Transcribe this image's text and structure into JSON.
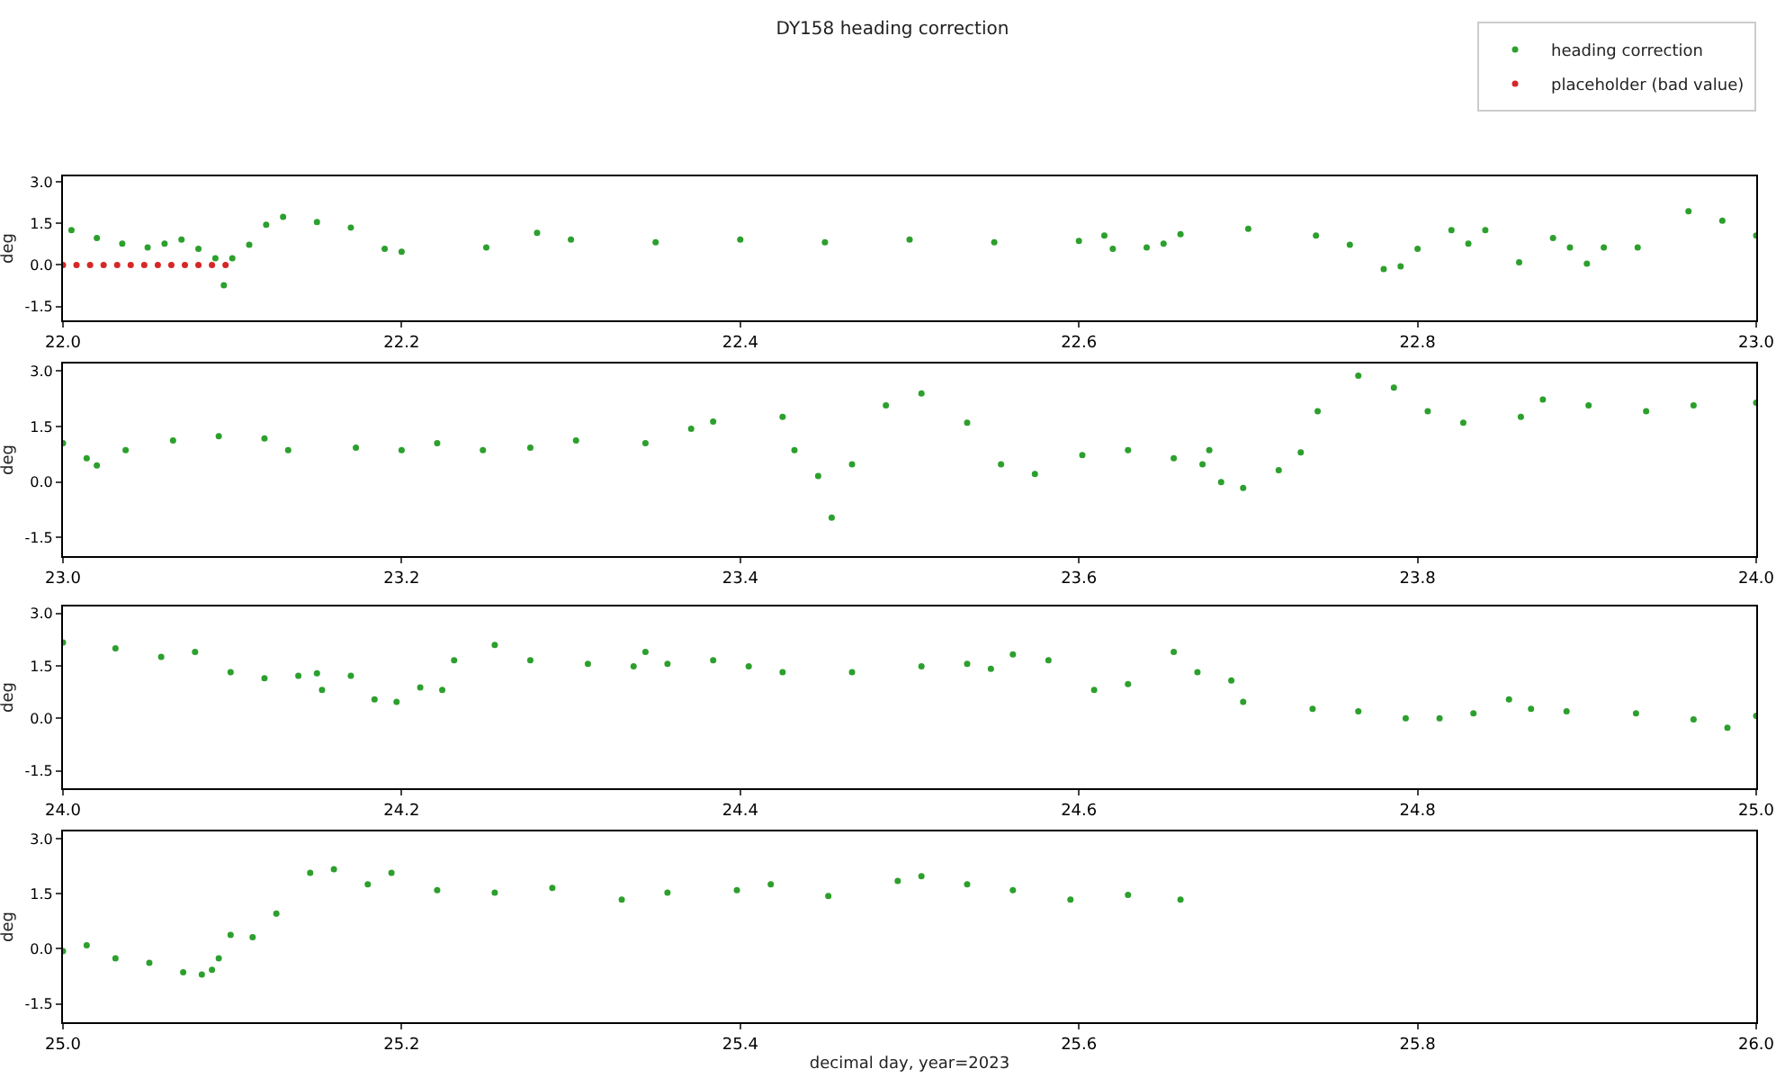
{
  "chart_data": [
    {
      "type": "scatter",
      "title": "DY158 heading correction",
      "ylabel": "deg",
      "legend": "top right",
      "marker": "circle",
      "grid": false,
      "xlim": [
        22.0,
        23.0
      ],
      "xticks": [
        {
          "value": 22.0,
          "label": "22.0"
        },
        {
          "value": 22.2,
          "label": "22.2"
        },
        {
          "value": 22.4,
          "label": "22.4"
        },
        {
          "value": 22.6,
          "label": "22.6"
        },
        {
          "value": 22.8,
          "label": "22.8"
        },
        {
          "value": 23.0,
          "label": "23.0"
        }
      ],
      "ylim": [
        -2.0,
        3.2
      ],
      "yticks": [
        {
          "value": -1.5,
          "label": "-1.5"
        },
        {
          "value": 0,
          "label": "0.0"
        },
        {
          "value": 1.5,
          "label": "1.5"
        },
        {
          "value": 3.0,
          "label": "3.0"
        }
      ],
      "series": [
        {
          "name": "heading correction",
          "color": "#2ca02c",
          "x": [
            22.005,
            22.02,
            22.035,
            22.05,
            22.06,
            22.07,
            22.08,
            22.09,
            22.095,
            22.1,
            22.11,
            22.12,
            22.13,
            22.15,
            22.17,
            22.19,
            22.2,
            22.25,
            22.28,
            22.3,
            22.35,
            22.4,
            22.45,
            22.5,
            22.55,
            22.6,
            22.615,
            22.62,
            22.64,
            22.65,
            22.66,
            22.7,
            22.74,
            22.76,
            22.78,
            22.79,
            22.8,
            22.82,
            22.83,
            22.84,
            22.86,
            22.88,
            22.89,
            22.9,
            22.91,
            22.93,
            22.96,
            22.98,
            23.0
          ],
          "values": [
            1.26,
            0.97,
            0.77,
            0.63,
            0.77,
            0.92,
            0.58,
            0.24,
            -0.73,
            0.24,
            0.73,
            1.45,
            1.74,
            1.55,
            1.35,
            0.58,
            0.48,
            0.63,
            1.16,
            0.92,
            0.82,
            0.92,
            0.82,
            0.92,
            0.82,
            0.87,
            1.06,
            0.58,
            0.63,
            0.77,
            1.11,
            1.31,
            1.06,
            0.73,
            -0.15,
            -0.05,
            0.58,
            1.26,
            0.77,
            1.26,
            0.1,
            0.97,
            0.63,
            0.05,
            0.63,
            0.63,
            1.94,
            1.6,
            1.06
          ]
        },
        {
          "name": "placeholder (bad value)",
          "color": "#d62728",
          "x": [
            22.0,
            22.008,
            22.016,
            22.024,
            22.032,
            22.04,
            22.048,
            22.056,
            22.064,
            22.072,
            22.08,
            22.088,
            22.096
          ],
          "values": [
            0,
            0,
            0,
            0,
            0,
            0,
            0,
            0,
            0,
            0,
            0,
            0,
            0
          ]
        }
      ]
    },
    {
      "type": "scatter",
      "ylabel": "deg",
      "marker": "circle",
      "grid": false,
      "xlim": [
        23.0,
        24.0
      ],
      "xticks": [
        {
          "value": 23.0,
          "label": "23.0"
        },
        {
          "value": 23.2,
          "label": "23.2"
        },
        {
          "value": 23.4,
          "label": "23.4"
        },
        {
          "value": 23.6,
          "label": "23.6"
        },
        {
          "value": 23.8,
          "label": "23.8"
        },
        {
          "value": 24.0,
          "label": "24.0"
        }
      ],
      "ylim": [
        -2.0,
        3.2
      ],
      "yticks": [
        {
          "value": -1.5,
          "label": "-1.5"
        },
        {
          "value": 0,
          "label": "0.0"
        },
        {
          "value": 1.5,
          "label": "1.5"
        },
        {
          "value": 3.0,
          "label": "3.0"
        }
      ],
      "series": [
        {
          "color": "#2ca02c",
          "x": [
            23.0,
            23.014,
            23.02,
            23.037,
            23.065,
            23.092,
            23.119,
            23.133,
            23.173,
            23.2,
            23.221,
            23.248,
            23.276,
            23.303,
            23.344,
            23.371,
            23.384,
            23.425,
            23.432,
            23.446,
            23.454,
            23.466,
            23.486,
            23.507,
            23.534,
            23.554,
            23.574,
            23.602,
            23.629,
            23.656,
            23.673,
            23.677,
            23.684,
            23.697,
            23.718,
            23.731,
            23.741,
            23.765,
            23.786,
            23.806,
            23.827,
            23.861,
            23.874,
            23.901,
            23.935,
            23.963,
            24.0
          ],
          "values": [
            1.05,
            0.64,
            0.45,
            0.86,
            1.12,
            1.24,
            1.18,
            0.86,
            0.93,
            0.86,
            1.05,
            0.86,
            0.93,
            1.12,
            1.05,
            1.44,
            1.63,
            1.76,
            0.86,
            0.16,
            -0.96,
            0.48,
            2.07,
            2.39,
            1.6,
            0.48,
            0.22,
            0.73,
            0.86,
            0.64,
            0.48,
            0.86,
            0,
            -0.16,
            0.32,
            0.8,
            1.91,
            2.87,
            2.55,
            1.91,
            1.6,
            1.76,
            2.23,
            2.07,
            1.91,
            2.07,
            2.14
          ]
        }
      ]
    },
    {
      "type": "scatter",
      "ylabel": "deg",
      "marker": "circle",
      "grid": false,
      "xlim": [
        24.0,
        25.0
      ],
      "xticks": [
        {
          "value": 24.0,
          "label": "24.0"
        },
        {
          "value": 24.2,
          "label": "24.2"
        },
        {
          "value": 24.4,
          "label": "24.4"
        },
        {
          "value": 24.6,
          "label": "24.6"
        },
        {
          "value": 24.8,
          "label": "24.8"
        },
        {
          "value": 25.0,
          "label": "25.0"
        }
      ],
      "ylim": [
        -2.0,
        3.2
      ],
      "yticks": [
        {
          "value": -1.5,
          "label": "-1.5"
        },
        {
          "value": 0,
          "label": "0.0"
        },
        {
          "value": 1.5,
          "label": "1.5"
        },
        {
          "value": 3.0,
          "label": "3.0"
        }
      ],
      "series": [
        {
          "color": "#2ca02c",
          "x": [
            24.0,
            24.031,
            24.058,
            24.078,
            24.099,
            24.119,
            24.139,
            24.15,
            24.153,
            24.17,
            24.184,
            24.197,
            24.211,
            24.224,
            24.231,
            24.255,
            24.276,
            24.31,
            24.337,
            24.344,
            24.357,
            24.384,
            24.405,
            24.425,
            24.466,
            24.507,
            24.534,
            24.548,
            24.561,
            24.582,
            24.609,
            24.629,
            24.656,
            24.67,
            24.69,
            24.697,
            24.738,
            24.765,
            24.793,
            24.813,
            24.833,
            24.854,
            24.867,
            24.888,
            24.929,
            24.963,
            24.983,
            25.0
          ],
          "values": [
            2.17,
            2.0,
            1.76,
            1.9,
            1.32,
            1.15,
            1.22,
            1.29,
            0.81,
            1.22,
            0.54,
            0.47,
            0.88,
            0.81,
            1.66,
            2.1,
            1.66,
            1.56,
            1.49,
            1.9,
            1.56,
            1.66,
            1.49,
            1.32,
            1.32,
            1.49,
            1.56,
            1.42,
            1.83,
            1.66,
            0.81,
            0.98,
            1.9,
            1.32,
            1.08,
            0.47,
            0.27,
            0.2,
            0,
            0,
            0.14,
            0.54,
            0.27,
            0.2,
            0.14,
            -0.03,
            -0.27,
            0.07
          ]
        }
      ]
    },
    {
      "type": "scatter",
      "ylabel": "deg",
      "xlabel": "decimal day, year=2023",
      "marker": "circle",
      "grid": false,
      "xlim": [
        25.0,
        26.0
      ],
      "xticks": [
        {
          "value": 25.0,
          "label": "25.0"
        },
        {
          "value": 25.2,
          "label": "25.2"
        },
        {
          "value": 25.4,
          "label": "25.4"
        },
        {
          "value": 25.6,
          "label": "25.6"
        },
        {
          "value": 25.8,
          "label": "25.8"
        },
        {
          "value": 26.0,
          "label": "26.0"
        }
      ],
      "ylim": [
        -2.0,
        3.2
      ],
      "yticks": [
        {
          "value": -1.5,
          "label": "-1.5"
        },
        {
          "value": 0,
          "label": "0.0"
        },
        {
          "value": 1.5,
          "label": "1.5"
        },
        {
          "value": 3.0,
          "label": "3.0"
        }
      ],
      "series": [
        {
          "color": "#2ca02c",
          "x": [
            25.0,
            25.014,
            25.031,
            25.051,
            25.071,
            25.082,
            25.088,
            25.092,
            25.099,
            25.112,
            25.126,
            25.146,
            25.16,
            25.18,
            25.194,
            25.221,
            25.255,
            25.289,
            25.33,
            25.357,
            25.398,
            25.418,
            25.452,
            25.493,
            25.507,
            25.534,
            25.561,
            25.595,
            25.629,
            25.66
          ],
          "values": [
            -0.06,
            0.1,
            -0.26,
            -0.38,
            -0.64,
            -0.7,
            -0.57,
            -0.26,
            0.38,
            0.32,
            0.96,
            2.07,
            2.17,
            1.76,
            2.07,
            1.6,
            1.53,
            1.66,
            1.34,
            1.53,
            1.6,
            1.76,
            1.44,
            1.85,
            1.98,
            1.76,
            1.6,
            1.34,
            1.47,
            1.34
          ]
        }
      ]
    }
  ]
}
